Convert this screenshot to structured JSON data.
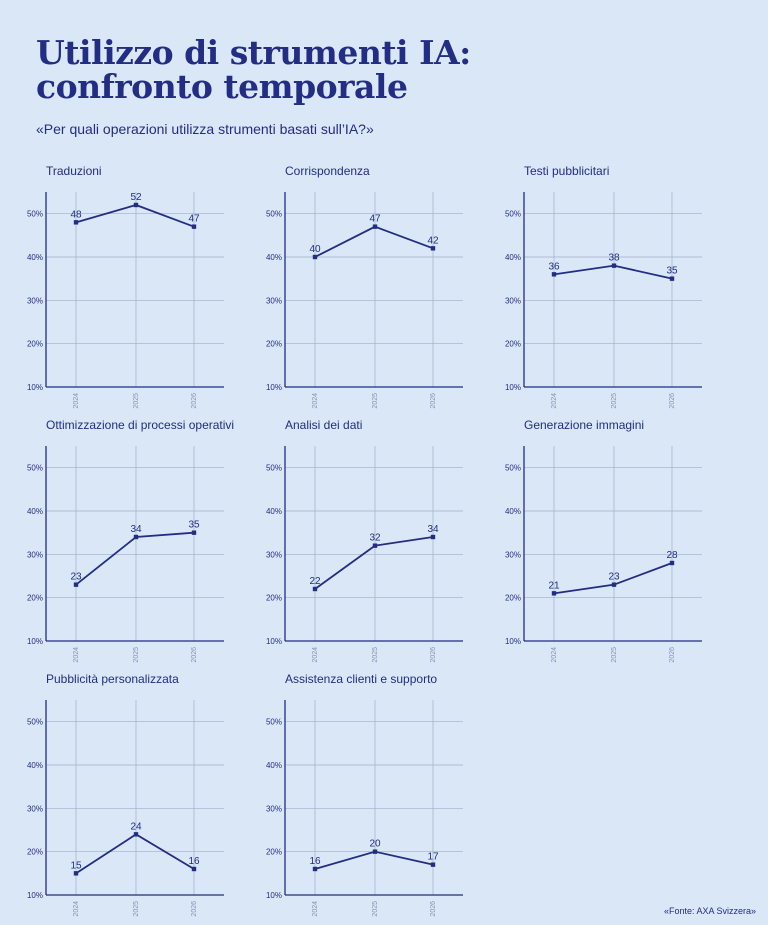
{
  "title_line1": "Utilizzo di strumenti IA:",
  "title_line2": "confronto temporale",
  "subtitle": "«Per quali operazioni utilizza strumenti basati sull’IA?»",
  "source": "«Fonte: AXA Svizzera»",
  "colors": {
    "background": "#d9e7f7",
    "accent": "#232d83",
    "grid": "#9fb0c8"
  },
  "chart_data": [
    {
      "type": "line",
      "title": "Traduzioni",
      "x": [
        "2024",
        "2025",
        "2026"
      ],
      "values": [
        48,
        52,
        47
      ],
      "y_ticks": [
        "10%",
        "20%",
        "30%",
        "40%",
        "50%"
      ],
      "ylim": [
        10,
        55
      ],
      "grid": true
    },
    {
      "type": "line",
      "title": "Corrispondenza",
      "x": [
        "2024",
        "2025",
        "2026"
      ],
      "values": [
        40,
        47,
        42
      ],
      "y_ticks": [
        "10%",
        "20%",
        "30%",
        "40%",
        "50%"
      ],
      "ylim": [
        10,
        55
      ],
      "grid": true
    },
    {
      "type": "line",
      "title": "Testi pubblicitari",
      "x": [
        "2024",
        "2025",
        "2026"
      ],
      "values": [
        36,
        38,
        35
      ],
      "y_ticks": [
        "10%",
        "20%",
        "30%",
        "40%",
        "50%"
      ],
      "ylim": [
        10,
        55
      ],
      "grid": true
    },
    {
      "type": "line",
      "title": "Ottimizzazione di processi operativi",
      "x": [
        "2024",
        "2025",
        "2026"
      ],
      "values": [
        23,
        34,
        35
      ],
      "y_ticks": [
        "10%",
        "20%",
        "30%",
        "40%",
        "50%"
      ],
      "ylim": [
        10,
        55
      ],
      "grid": true
    },
    {
      "type": "line",
      "title": "Analisi dei dati",
      "x": [
        "2024",
        "2025",
        "2026"
      ],
      "values": [
        22,
        32,
        34
      ],
      "y_ticks": [
        "10%",
        "20%",
        "30%",
        "40%",
        "50%"
      ],
      "ylim": [
        10,
        55
      ],
      "grid": true
    },
    {
      "type": "line",
      "title": "Generazione immagini",
      "x": [
        "2024",
        "2025",
        "2026"
      ],
      "values": [
        21,
        23,
        28
      ],
      "y_ticks": [
        "10%",
        "20%",
        "30%",
        "40%",
        "50%"
      ],
      "ylim": [
        10,
        55
      ],
      "grid": true
    },
    {
      "type": "line",
      "title": "Pubblicità personalizzata",
      "x": [
        "2024",
        "2025",
        "2026"
      ],
      "values": [
        15,
        24,
        16
      ],
      "y_ticks": [
        "10%",
        "20%",
        "30%",
        "40%",
        "50%"
      ],
      "ylim": [
        10,
        55
      ],
      "grid": true
    },
    {
      "type": "line",
      "title": "Assistenza clienti e supporto",
      "x": [
        "2024",
        "2025",
        "2026"
      ],
      "values": [
        16,
        20,
        17
      ],
      "y_ticks": [
        "10%",
        "20%",
        "30%",
        "40%",
        "50%"
      ],
      "ylim": [
        10,
        55
      ],
      "grid": true
    }
  ]
}
